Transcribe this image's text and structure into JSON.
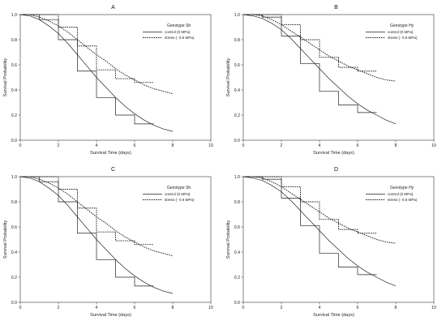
{
  "chart_data": [
    {
      "type": "line",
      "panel": "A",
      "legend_title": "Genotype Sh",
      "xlabel": "Survival Time (days)",
      "ylabel": "Survival Probability",
      "xlim": [
        0,
        10
      ],
      "ylim": [
        0,
        1.0
      ],
      "xticks": [
        "0",
        "2",
        "4",
        "6",
        "8",
        "10"
      ],
      "yticks": [
        "0.0",
        "0.2",
        "0.4",
        "0.6",
        "0.8",
        "1.0"
      ],
      "legend_position": "top-right",
      "grid": false,
      "series": [
        {
          "name": "control (0 MPa)",
          "style": "solid",
          "step": {
            "x": [
              0,
              1,
              2,
              3,
              4,
              5,
              6,
              7
            ],
            "y": [
              1.0,
              0.96,
              0.8,
              0.55,
              0.34,
              0.2,
              0.13,
              0.13
            ]
          },
          "curve": {
            "x": [
              0,
              0.5,
              1,
              1.5,
              2,
              2.5,
              3,
              3.5,
              4,
              4.5,
              5,
              5.5,
              6,
              6.5,
              7,
              7.5,
              8
            ],
            "y": [
              1.0,
              0.99,
              0.96,
              0.91,
              0.85,
              0.77,
              0.68,
              0.59,
              0.5,
              0.42,
              0.34,
              0.27,
              0.21,
              0.16,
              0.12,
              0.09,
              0.07
            ]
          }
        },
        {
          "name": "stress (- 0.6 MPa)",
          "style": "dotted",
          "step": {
            "x": [
              0,
              1,
              2,
              3,
              4,
              5,
              6,
              7
            ],
            "y": [
              1.0,
              1.0,
              0.9,
              0.75,
              0.56,
              0.49,
              0.46,
              0.46
            ]
          },
          "curve": {
            "x": [
              0,
              0.5,
              1,
              1.5,
              2,
              2.5,
              3,
              3.5,
              4,
              4.5,
              5,
              5.5,
              6,
              6.5,
              7,
              7.5,
              8
            ],
            "y": [
              1.0,
              1.0,
              0.98,
              0.95,
              0.91,
              0.86,
              0.8,
              0.74,
              0.68,
              0.63,
              0.57,
              0.52,
              0.48,
              0.44,
              0.41,
              0.39,
              0.37
            ]
          }
        }
      ]
    },
    {
      "type": "line",
      "panel": "B",
      "legend_title": "Genotype Hy",
      "xlabel": "Survival Time (days)",
      "ylabel": "Survival Probability",
      "xlim": [
        0,
        10
      ],
      "ylim": [
        0,
        1.0
      ],
      "xticks": [
        "0",
        "2",
        "4",
        "6",
        "8",
        "10"
      ],
      "yticks": [
        "0.0",
        "0.2",
        "0.4",
        "0.6",
        "0.8",
        "1.0"
      ],
      "legend_position": "top-right",
      "grid": false,
      "series": [
        {
          "name": "control (0 MPa)",
          "style": "solid",
          "step": {
            "x": [
              0,
              1,
              2,
              3,
              4,
              5,
              6,
              7
            ],
            "y": [
              1.0,
              0.98,
              0.83,
              0.61,
              0.39,
              0.28,
              0.22,
              0.22
            ]
          },
          "curve": {
            "x": [
              0,
              0.5,
              1,
              1.5,
              2,
              2.5,
              3,
              3.5,
              4,
              4.5,
              5,
              5.5,
              6,
              6.5,
              7,
              7.5,
              8
            ],
            "y": [
              1.0,
              0.99,
              0.97,
              0.93,
              0.88,
              0.81,
              0.73,
              0.65,
              0.57,
              0.49,
              0.42,
              0.35,
              0.29,
              0.24,
              0.2,
              0.16,
              0.13
            ]
          }
        },
        {
          "name": "stress (- 0.6 MPa)",
          "style": "dotted",
          "step": {
            "x": [
              0,
              1,
              2,
              3,
              4,
              5,
              6,
              7
            ],
            "y": [
              1.0,
              1.0,
              0.92,
              0.8,
              0.66,
              0.58,
              0.55,
              0.55
            ]
          },
          "curve": {
            "x": [
              0,
              0.5,
              1,
              1.5,
              2,
              2.5,
              3,
              3.5,
              4,
              4.5,
              5,
              5.5,
              6,
              6.5,
              7,
              7.5,
              8
            ],
            "y": [
              1.0,
              1.0,
              0.99,
              0.96,
              0.92,
              0.87,
              0.82,
              0.77,
              0.72,
              0.67,
              0.63,
              0.59,
              0.56,
              0.53,
              0.5,
              0.48,
              0.47
            ]
          }
        }
      ]
    },
    {
      "type": "line",
      "panel": "C",
      "legend_title": "Genotype Sh",
      "xlabel": "Survival Time (days)",
      "ylabel": "Survival Probability",
      "xlim": [
        0,
        10
      ],
      "ylim": [
        0,
        1.0
      ],
      "xticks": [
        "0",
        "2",
        "4",
        "6",
        "8",
        "10"
      ],
      "yticks": [
        "0.0",
        "0.2",
        "0.4",
        "0.6",
        "0.8",
        "1.0"
      ],
      "legend_position": "top-right",
      "grid": false,
      "series": [
        {
          "name": "control (0 MPa)",
          "style": "solid",
          "step": {
            "x": [
              0,
              1,
              2,
              3,
              4,
              5,
              6,
              7
            ],
            "y": [
              1.0,
              0.96,
              0.8,
              0.55,
              0.34,
              0.2,
              0.13,
              0.13
            ]
          },
          "curve": {
            "x": [
              0,
              0.5,
              1,
              1.5,
              2,
              2.5,
              3,
              3.5,
              4,
              4.5,
              5,
              5.5,
              6,
              6.5,
              7,
              7.5,
              8
            ],
            "y": [
              1.0,
              0.99,
              0.96,
              0.91,
              0.85,
              0.77,
              0.68,
              0.59,
              0.5,
              0.42,
              0.34,
              0.27,
              0.21,
              0.16,
              0.12,
              0.09,
              0.07
            ]
          }
        },
        {
          "name": "stress (- 0.6 MPa)",
          "style": "dotted",
          "step": {
            "x": [
              0,
              1,
              2,
              3,
              4,
              5,
              6,
              7
            ],
            "y": [
              1.0,
              1.0,
              0.9,
              0.75,
              0.56,
              0.49,
              0.46,
              0.46
            ]
          },
          "curve": {
            "x": [
              0,
              0.5,
              1,
              1.5,
              2,
              2.5,
              3,
              3.5,
              4,
              4.5,
              5,
              5.5,
              6,
              6.5,
              7,
              7.5,
              8
            ],
            "y": [
              1.0,
              1.0,
              0.98,
              0.95,
              0.91,
              0.86,
              0.8,
              0.74,
              0.68,
              0.63,
              0.57,
              0.52,
              0.48,
              0.44,
              0.41,
              0.39,
              0.37
            ]
          }
        }
      ]
    },
    {
      "type": "line",
      "panel": "D",
      "legend_title": "Genotype Hy",
      "xlabel": "Survival Time (days)",
      "ylabel": "Survival Probability",
      "xlim": [
        0,
        10
      ],
      "ylim": [
        0,
        1.0
      ],
      "xticks": [
        "0",
        "2",
        "4",
        "6",
        "8",
        "10"
      ],
      "yticks": [
        "0.0",
        "0.2",
        "0.4",
        "0.6",
        "0.8",
        "1.0"
      ],
      "legend_position": "top-right",
      "grid": false,
      "series": [
        {
          "name": "control (0 MPa)",
          "style": "solid",
          "step": {
            "x": [
              0,
              1,
              2,
              3,
              4,
              5,
              6,
              7
            ],
            "y": [
              1.0,
              0.98,
              0.83,
              0.61,
              0.39,
              0.28,
              0.22,
              0.22
            ]
          },
          "curve": {
            "x": [
              0,
              0.5,
              1,
              1.5,
              2,
              2.5,
              3,
              3.5,
              4,
              4.5,
              5,
              5.5,
              6,
              6.5,
              7,
              7.5,
              8
            ],
            "y": [
              1.0,
              0.99,
              0.97,
              0.93,
              0.88,
              0.81,
              0.73,
              0.65,
              0.57,
              0.49,
              0.42,
              0.35,
              0.29,
              0.24,
              0.2,
              0.16,
              0.13
            ]
          }
        },
        {
          "name": "stress (- 0.6 MPa)",
          "style": "dotted",
          "step": {
            "x": [
              0,
              1,
              2,
              3,
              4,
              5,
              6,
              7
            ],
            "y": [
              1.0,
              1.0,
              0.92,
              0.8,
              0.66,
              0.58,
              0.55,
              0.55
            ]
          },
          "curve": {
            "x": [
              0,
              0.5,
              1,
              1.5,
              2,
              2.5,
              3,
              3.5,
              4,
              4.5,
              5,
              5.5,
              6,
              6.5,
              7,
              7.5,
              8
            ],
            "y": [
              1.0,
              1.0,
              0.99,
              0.96,
              0.92,
              0.87,
              0.82,
              0.77,
              0.72,
              0.67,
              0.63,
              0.59,
              0.56,
              0.53,
              0.5,
              0.48,
              0.47
            ]
          }
        }
      ]
    }
  ]
}
